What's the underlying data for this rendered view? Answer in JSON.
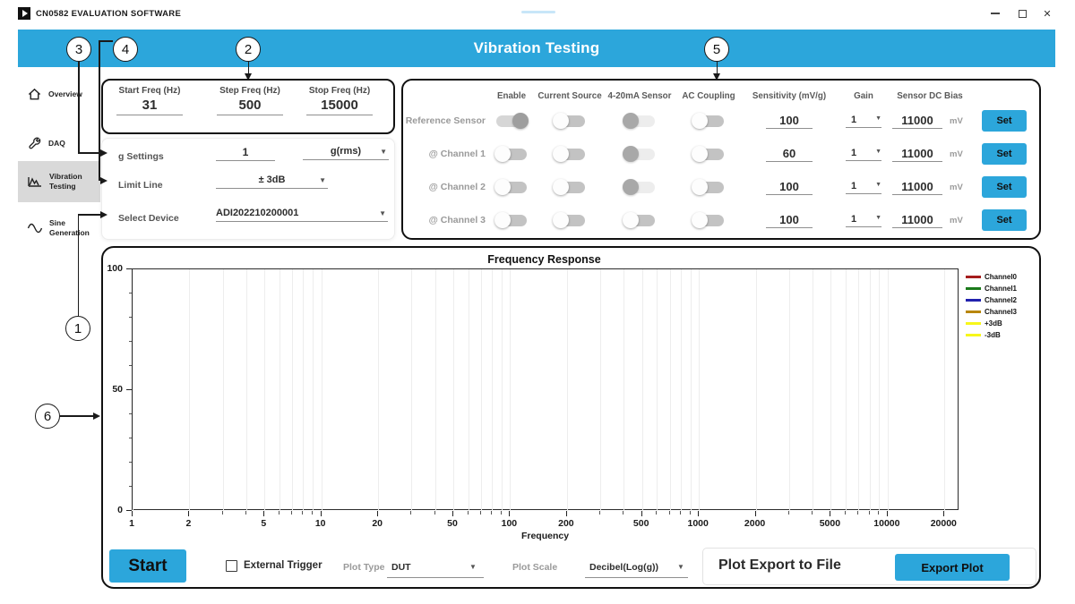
{
  "window": {
    "title": "CN0582 EVALUATION SOFTWARE",
    "controls": {
      "close_glyph": "✕"
    }
  },
  "header": {
    "title": "Vibration Testing"
  },
  "sidebar": {
    "items": [
      {
        "label": "Overview",
        "icon": "home-icon",
        "active": false
      },
      {
        "label": "DAQ",
        "icon": "wrench-icon",
        "active": false
      },
      {
        "label": "Vibration Testing",
        "icon": "vibration-chart-icon",
        "active": true
      },
      {
        "label": "Sine Generation",
        "icon": "sine-wave-icon",
        "active": false
      }
    ]
  },
  "sweep_panel": {
    "fields": [
      {
        "label": "Start Freq (Hz)",
        "value": "31"
      },
      {
        "label": "Step Freq (Hz)",
        "value": "500"
      },
      {
        "label": "Stop Freq (Hz)",
        "value": "15000"
      }
    ]
  },
  "settings_panel": {
    "g_settings": {
      "label": "g Settings",
      "value": "1",
      "unit": "g(rms)"
    },
    "limit_line": {
      "label": "Limit Line",
      "value": "± 3dB"
    },
    "select_device": {
      "label": "Select Device",
      "value": "ADI202210200001"
    }
  },
  "channel_panel": {
    "columns": [
      "Enable",
      "Current Source",
      "4-20mA Sensor",
      "AC Coupling",
      "Sensitivity (mV/g)",
      "Gain",
      "Sensor DC Bias"
    ],
    "bias_unit": "mV",
    "set_label": "Set",
    "rows": [
      {
        "name": "Reference Sensor",
        "toggles": {
          "enable": "on",
          "current_source": "off",
          "sensor_420": "neutral",
          "ac_coupling": "off"
        },
        "sensitivity": "100",
        "gain": "1",
        "bias": "11000"
      },
      {
        "name": "@ Channel 1",
        "toggles": {
          "enable": "off",
          "current_source": "off",
          "sensor_420": "neutral",
          "ac_coupling": "off"
        },
        "sensitivity": "60",
        "gain": "1",
        "bias": "11000"
      },
      {
        "name": "@ Channel 2",
        "toggles": {
          "enable": "off",
          "current_source": "off",
          "sensor_420": "neutral",
          "ac_coupling": "off"
        },
        "sensitivity": "100",
        "gain": "1",
        "bias": "11000"
      },
      {
        "name": "@ Channel 3",
        "toggles": {
          "enable": "off",
          "current_source": "off",
          "sensor_420": "off",
          "ac_coupling": "off"
        },
        "sensitivity": "100",
        "gain": "1",
        "bias": "11000"
      }
    ]
  },
  "chart_data": {
    "type": "line",
    "title": "Frequency Response",
    "xlabel": "Frequency",
    "ylabel": "",
    "x_scale": "log",
    "xlim": [
      1,
      24000
    ],
    "ylim": [
      0,
      100
    ],
    "x_ticks": [
      1,
      2,
      5,
      10,
      20,
      50,
      100,
      200,
      500,
      1000,
      2000,
      5000,
      10000,
      20000
    ],
    "y_ticks": [
      0,
      50,
      100
    ],
    "y_minor_step": 10,
    "grid": true,
    "legend_position": "right",
    "series": [
      {
        "name": "Channel0",
        "color": "#a51d1d",
        "values": []
      },
      {
        "name": "Channel1",
        "color": "#1b7a1b",
        "values": []
      },
      {
        "name": "Channel2",
        "color": "#2121ae",
        "values": []
      },
      {
        "name": "Channel3",
        "color": "#b8860b",
        "values": []
      },
      {
        "name": "+3dB",
        "color": "#f7f71a",
        "values": []
      },
      {
        "name": "-3dB",
        "color": "#f7f71a",
        "values": []
      }
    ]
  },
  "bottom_bar": {
    "start_label": "Start",
    "external_trigger_label": "External Trigger",
    "external_trigger_checked": false,
    "plot_type_label": "Plot Type",
    "plot_type_value": "DUT",
    "plot_scale_label": "Plot Scale",
    "plot_scale_value": "Decibel(Log(g))",
    "export_section_label": "Plot Export to File",
    "export_button_label": "Export Plot"
  },
  "callouts": [
    "1",
    "2",
    "3",
    "4",
    "5",
    "6"
  ],
  "colors": {
    "accent_blue": "#2CA6DB",
    "sidebar_active_bg": "#d9d9d9"
  }
}
